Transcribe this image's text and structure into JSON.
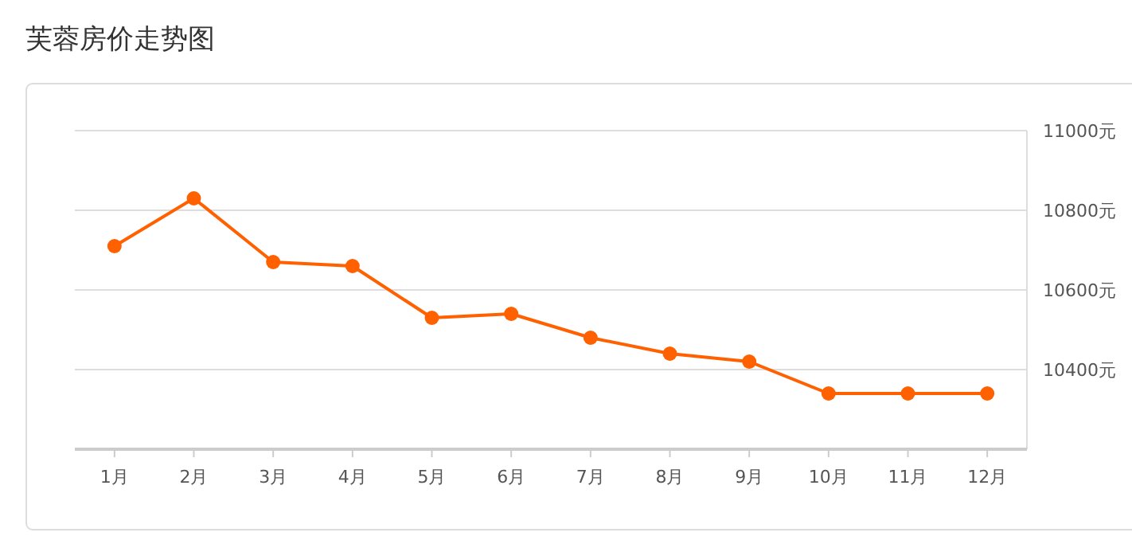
{
  "chart_data": {
    "type": "line",
    "title": "芙蓉房价走势图",
    "categories": [
      "1月",
      "2月",
      "3月",
      "4月",
      "5月",
      "6月",
      "7月",
      "8月",
      "9月",
      "10月",
      "11月",
      "12月"
    ],
    "series": [
      {
        "color": "#ff6000",
        "values": [
          10710,
          10830,
          10670,
          10660,
          10530,
          10540,
          10480,
          10440,
          10420,
          10340,
          10340,
          10340
        ]
      }
    ],
    "ylim": [
      10200,
      11000
    ],
    "yticks": [
      {
        "value": 10400,
        "label": "10400元"
      },
      {
        "value": 10600,
        "label": "10600元"
      },
      {
        "value": 10800,
        "label": "10800元"
      },
      {
        "value": 11000,
        "label": "11000元"
      }
    ],
    "grid": "y",
    "marker": "circle",
    "line_style": "solid"
  }
}
